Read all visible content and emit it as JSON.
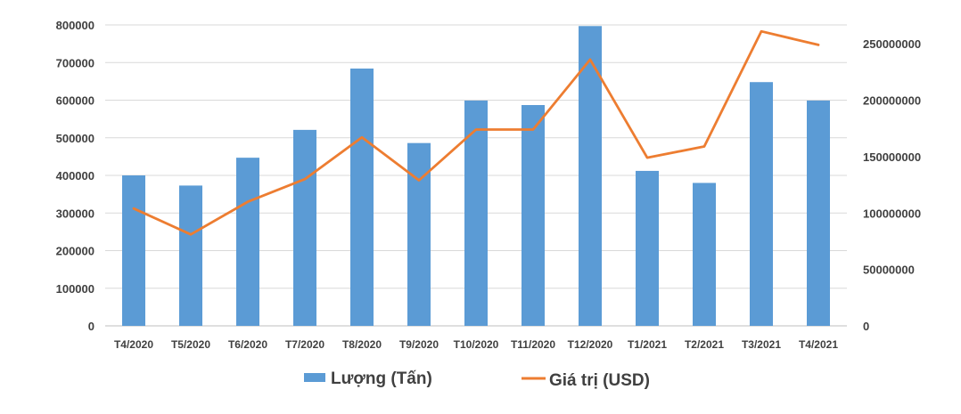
{
  "chart_data": {
    "type": "bar",
    "categories": [
      "T4/2020",
      "T5/2020",
      "T6/2020",
      "T7/2020",
      "T8/2020",
      "T9/2020",
      "T10/2020",
      "T11/2020",
      "T12/2020",
      "T1/2021",
      "T2/2021",
      "T3/2021",
      "T4/2021"
    ],
    "series": [
      {
        "name": "Lượng (Tấn)",
        "type": "bar",
        "axis": "left",
        "color": "#5b9bd5",
        "values": [
          400000,
          373000,
          447000,
          521000,
          684000,
          486000,
          599000,
          587000,
          797000,
          412000,
          380000,
          648000,
          599000
        ]
      },
      {
        "name": "Giá trị (USD)",
        "type": "line",
        "axis": "right",
        "color": "#ed7d31",
        "values": [
          104000000,
          81000000,
          110000000,
          130000000,
          167000000,
          129000000,
          174000000,
          174000000,
          236000000,
          149000000,
          159000000,
          261000000,
          249000000
        ]
      }
    ],
    "y_left": {
      "ylim": [
        0,
        800000
      ],
      "ticks": [
        "0",
        "100000",
        "200000",
        "300000",
        "400000",
        "500000",
        "600000",
        "700000",
        "800000"
      ]
    },
    "y_right": {
      "ylim": [
        0,
        266666667
      ],
      "ticks": [
        "0",
        "50000000",
        "100000000",
        "150000000",
        "200000000",
        "250000000"
      ]
    },
    "grid": true,
    "legend_position": "bottom",
    "title": "",
    "xlabel": "",
    "ylabel": ""
  }
}
